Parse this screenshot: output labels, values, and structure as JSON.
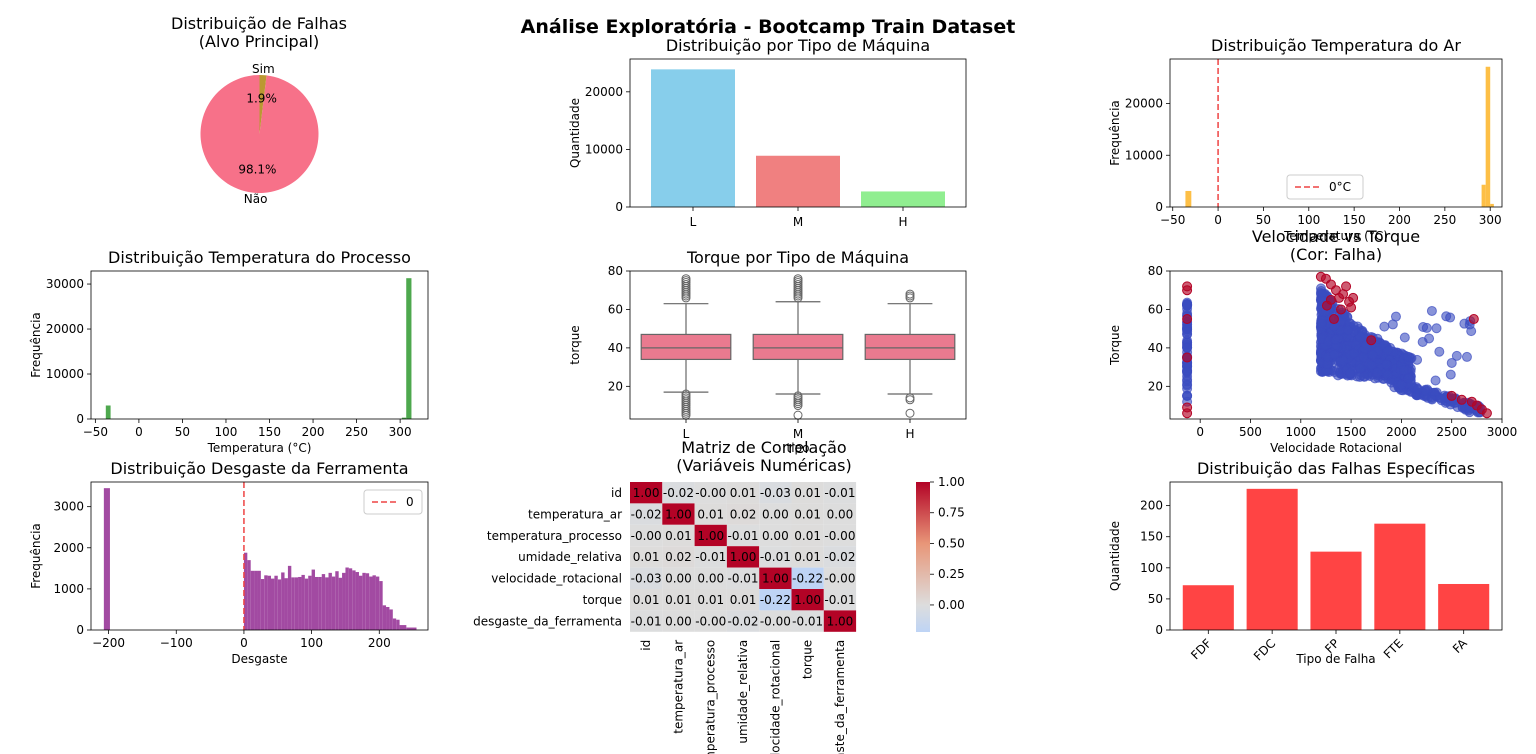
{
  "suptitle": "Análise Exploratória - Bootcamp Train Dataset",
  "chart_data": [
    {
      "id": "pie",
      "type": "pie",
      "title": "Distribuição de Falhas\n(Alvo Principal)",
      "labels": [
        "Não",
        "Sim"
      ],
      "values": [
        98.1,
        1.9
      ],
      "pct_labels": [
        "98.1%",
        "1.9%"
      ],
      "colors": [
        "#f77189",
        "#bb9832"
      ]
    },
    {
      "id": "tipo",
      "type": "bar",
      "title": "Distribuição por Tipo de Máquina",
      "xlabel": "",
      "ylabel": "Quantidade",
      "categories": [
        "L",
        "M",
        "H"
      ],
      "values": [
        23900,
        8900,
        2700
      ],
      "ylim": [
        0,
        25700
      ],
      "yticks": [
        0,
        10000,
        20000
      ],
      "colors": [
        "#87ceeb",
        "#f08080",
        "#90ee90"
      ]
    },
    {
      "id": "temp_ar",
      "type": "bar",
      "title": "Distribuição Temperatura do Ar",
      "xlabel": "Temperatura (°C)",
      "ylabel": "Frequência",
      "bins": [
        {
          "x0": -36,
          "x1": -29.5,
          "v": 3100
        },
        {
          "x0": 290.5,
          "x1": 295,
          "v": 4300
        },
        {
          "x0": 295,
          "x1": 300,
          "v": 27100
        },
        {
          "x0": 300,
          "x1": 304,
          "v": 600
        }
      ],
      "xlim": [
        -53,
        313
      ],
      "ylim": [
        0,
        28600
      ],
      "xticks": [
        -50,
        0,
        50,
        100,
        150,
        200,
        250,
        300
      ],
      "yticks": [
        0,
        10000,
        20000
      ],
      "color": "#fdbf46",
      "vline": {
        "x": 0,
        "label": "0°C",
        "color": "#ee4444"
      }
    },
    {
      "id": "temp_proc",
      "type": "bar",
      "title": "Distribuição Temperatura do Processo",
      "xlabel": "Temperatura (°C)",
      "ylabel": "Frequência",
      "bins": [
        {
          "x0": -38,
          "x1": -32.5,
          "v": 3000
        },
        {
          "x0": 302,
          "x1": 307,
          "v": 300
        },
        {
          "x0": 307,
          "x1": 313,
          "v": 31300
        }
      ],
      "xlim": [
        -55,
        332
      ],
      "ylim": [
        0,
        32900
      ],
      "xticks": [
        -50,
        0,
        50,
        100,
        150,
        200,
        250,
        300
      ],
      "yticks": [
        0,
        10000,
        20000,
        30000
      ],
      "color": "#4ea84e"
    },
    {
      "id": "torque_box",
      "type": "box",
      "title": "Torque por Tipo de Máquina",
      "xlabel": "tipo",
      "ylabel": "torque",
      "categories": [
        "L",
        "M",
        "H"
      ],
      "ylim": [
        3,
        80
      ],
      "yticks": [
        20,
        40,
        60,
        80
      ],
      "color": "#ea7a8f",
      "boxes": [
        {
          "q1": 34,
          "med": 40,
          "q3": 47,
          "wlo": 17,
          "whi": 63
        },
        {
          "q1": 34,
          "med": 40,
          "q3": 47,
          "wlo": 16,
          "whi": 64
        },
        {
          "q1": 34,
          "med": 40,
          "q3": 47,
          "wlo": 16,
          "whi": 63
        }
      ],
      "outliers": [
        [
          5,
          6,
          7,
          8,
          9,
          10,
          11,
          12,
          13,
          14,
          15,
          16,
          66,
          67,
          68,
          69,
          70,
          71,
          72,
          73,
          74,
          75,
          76
        ],
        [
          5,
          10,
          11,
          12,
          13,
          14,
          15,
          66,
          67,
          68,
          69,
          70,
          71,
          72,
          73,
          74,
          75,
          76
        ],
        [
          6,
          13,
          14,
          66,
          67,
          68
        ]
      ]
    },
    {
      "id": "vel_torque",
      "type": "scatter",
      "title": "Velocidade vs Torque\n(Cor: Falha)",
      "xlabel": "Velocidade Rotacional",
      "ylabel": "Torque",
      "xlim": [
        -300,
        3000
      ],
      "ylim": [
        3,
        80
      ],
      "xticks": [
        0,
        500,
        1000,
        1500,
        2000,
        2500,
        3000
      ],
      "yticks": [
        20,
        40,
        60,
        80
      ],
      "colors": [
        "#3b4cc0",
        "#b40426"
      ],
      "fail_points": [
        [
          -130,
          72
        ],
        [
          -130,
          70
        ],
        [
          -130,
          55
        ],
        [
          -130,
          35
        ],
        [
          -130,
          9
        ],
        [
          -130,
          6
        ],
        [
          1200,
          77
        ],
        [
          1250,
          76
        ],
        [
          1300,
          73
        ],
        [
          1350,
          70
        ],
        [
          1380,
          66
        ],
        [
          1420,
          68
        ],
        [
          1450,
          72
        ],
        [
          1480,
          64
        ],
        [
          1300,
          65
        ],
        [
          1260,
          62
        ],
        [
          1400,
          60
        ],
        [
          1500,
          61
        ],
        [
          1520,
          66
        ],
        [
          2720,
          55
        ],
        [
          2700,
          12
        ],
        [
          2750,
          10
        ],
        [
          2800,
          8
        ],
        [
          2850,
          6
        ],
        [
          2600,
          13
        ],
        [
          2500,
          15
        ],
        [
          1700,
          44
        ],
        [
          1330,
          55
        ]
      ]
    },
    {
      "id": "corr",
      "type": "heatmap",
      "title": "Matriz de Correlação\n(Variáveis Numéricas)",
      "labels": [
        "id",
        "temperatura_ar",
        "temperatura_processo",
        "umidade_relativa",
        "velocidade_rotacional",
        "torque",
        "desgaste_da_ferramenta"
      ],
      "matrix": [
        [
          1.0,
          -0.02,
          -0.0,
          0.01,
          -0.03,
          0.01,
          -0.01
        ],
        [
          -0.02,
          1.0,
          0.01,
          0.02,
          0.0,
          0.01,
          0.0
        ],
        [
          -0.0,
          0.01,
          1.0,
          -0.01,
          0.0,
          0.01,
          -0.0
        ],
        [
          0.01,
          0.02,
          -0.01,
          1.0,
          -0.01,
          0.01,
          -0.02
        ],
        [
          -0.03,
          0.0,
          0.0,
          -0.01,
          1.0,
          -0.22,
          -0.0
        ],
        [
          0.01,
          0.01,
          0.01,
          0.01,
          -0.22,
          1.0,
          -0.01
        ],
        [
          -0.01,
          0.0,
          -0.0,
          -0.02,
          -0.0,
          -0.01,
          1.0
        ]
      ],
      "value_labels": [
        [
          "1.00",
          "-0.02",
          "-0.00",
          "0.01",
          "-0.03",
          "0.01",
          "-0.01"
        ],
        [
          "-0.02",
          "1.00",
          "0.01",
          "0.02",
          "0.00",
          "0.01",
          "0.00"
        ],
        [
          "-0.00",
          "0.01",
          "1.00",
          "-0.01",
          "0.00",
          "0.01",
          "-0.00"
        ],
        [
          "0.01",
          "0.02",
          "-0.01",
          "1.00",
          "-0.01",
          "0.01",
          "-0.02"
        ],
        [
          "-0.03",
          "0.00",
          "0.00",
          "-0.01",
          "1.00",
          "-0.22",
          "-0.00"
        ],
        [
          "0.01",
          "0.01",
          "0.01",
          "0.01",
          "-0.22",
          "1.00",
          "-0.01"
        ],
        [
          "-0.01",
          "0.00",
          "-0.00",
          "-0.02",
          "-0.00",
          "-0.01",
          "1.00"
        ]
      ],
      "colorbar_ticks": [
        "1.00",
        "0.75",
        "0.50",
        "0.25",
        "0.00"
      ],
      "vmin": -0.22,
      "vmax": 1.0
    },
    {
      "id": "desgaste",
      "type": "bar",
      "title": "Distribuição Desgaste da Ferramenta",
      "xlabel": "Desgaste",
      "ylabel": "Frequência",
      "xlim": [
        -226,
        272
      ],
      "ylim": [
        0,
        3600
      ],
      "xticks": [
        -200,
        -100,
        0,
        100,
        200
      ],
      "yticks": [
        0,
        1000,
        2000,
        3000
      ],
      "color": "#a24aa2",
      "vline": {
        "x": 0,
        "label": "0",
        "color": "#ee4444"
      },
      "bins": [
        {
          "x0": -207,
          "x1": -198,
          "v": 3450
        },
        {
          "x0": 0,
          "x1": 5,
          "v": 1880
        },
        {
          "x0": 5,
          "x1": 10,
          "v": 1700
        },
        {
          "x0": 10,
          "x1": 15,
          "v": 1440
        },
        {
          "x0": 15,
          "x1": 20,
          "v": 1440
        },
        {
          "x0": 20,
          "x1": 25,
          "v": 1440
        },
        {
          "x0": 25,
          "x1": 30,
          "v": 1240
        },
        {
          "x0": 30,
          "x1": 35,
          "v": 1330
        },
        {
          "x0": 35,
          "x1": 40,
          "v": 1320
        },
        {
          "x0": 40,
          "x1": 45,
          "v": 1250
        },
        {
          "x0": 45,
          "x1": 50,
          "v": 1320
        },
        {
          "x0": 50,
          "x1": 55,
          "v": 1230
        },
        {
          "x0": 55,
          "x1": 60,
          "v": 1400
        },
        {
          "x0": 60,
          "x1": 65,
          "v": 1260
        },
        {
          "x0": 65,
          "x1": 70,
          "v": 1560
        },
        {
          "x0": 70,
          "x1": 75,
          "v": 1280
        },
        {
          "x0": 75,
          "x1": 80,
          "v": 1280
        },
        {
          "x0": 80,
          "x1": 85,
          "v": 1290
        },
        {
          "x0": 85,
          "x1": 90,
          "v": 1340
        },
        {
          "x0": 90,
          "x1": 95,
          "v": 1250
        },
        {
          "x0": 95,
          "x1": 100,
          "v": 1320
        },
        {
          "x0": 100,
          "x1": 105,
          "v": 1470
        },
        {
          "x0": 105,
          "x1": 110,
          "v": 1290
        },
        {
          "x0": 110,
          "x1": 115,
          "v": 1290
        },
        {
          "x0": 115,
          "x1": 120,
          "v": 1360
        },
        {
          "x0": 120,
          "x1": 125,
          "v": 1280
        },
        {
          "x0": 125,
          "x1": 130,
          "v": 1390
        },
        {
          "x0": 130,
          "x1": 135,
          "v": 1300
        },
        {
          "x0": 135,
          "x1": 140,
          "v": 1430
        },
        {
          "x0": 140,
          "x1": 145,
          "v": 1270
        },
        {
          "x0": 145,
          "x1": 150,
          "v": 1390
        },
        {
          "x0": 150,
          "x1": 155,
          "v": 1520
        },
        {
          "x0": 155,
          "x1": 160,
          "v": 1500
        },
        {
          "x0": 160,
          "x1": 165,
          "v": 1450
        },
        {
          "x0": 165,
          "x1": 170,
          "v": 1410
        },
        {
          "x0": 170,
          "x1": 175,
          "v": 1320
        },
        {
          "x0": 175,
          "x1": 180,
          "v": 1390
        },
        {
          "x0": 180,
          "x1": 185,
          "v": 1380
        },
        {
          "x0": 185,
          "x1": 190,
          "v": 1300
        },
        {
          "x0": 190,
          "x1": 195,
          "v": 1330
        },
        {
          "x0": 195,
          "x1": 200,
          "v": 1300
        },
        {
          "x0": 200,
          "x1": 205,
          "v": 1190
        },
        {
          "x0": 205,
          "x1": 210,
          "v": 600
        },
        {
          "x0": 210,
          "x1": 215,
          "v": 560
        },
        {
          "x0": 215,
          "x1": 220,
          "v": 500
        },
        {
          "x0": 220,
          "x1": 225,
          "v": 280
        },
        {
          "x0": 225,
          "x1": 230,
          "v": 250
        },
        {
          "x0": 230,
          "x1": 240,
          "v": 120
        },
        {
          "x0": 240,
          "x1": 255,
          "v": 60
        }
      ]
    },
    {
      "id": "falhas",
      "type": "bar",
      "title": "Distribuição das Falhas Específicas",
      "xlabel": "Tipo de Falha",
      "ylabel": "Quantidade",
      "categories": [
        "FDF",
        "FDC",
        "FP",
        "FTE",
        "FA"
      ],
      "values": [
        72,
        227,
        126,
        171,
        74
      ],
      "ylim": [
        0,
        238
      ],
      "yticks": [
        0,
        50,
        100,
        150,
        200
      ],
      "color": "#ff4444"
    }
  ]
}
